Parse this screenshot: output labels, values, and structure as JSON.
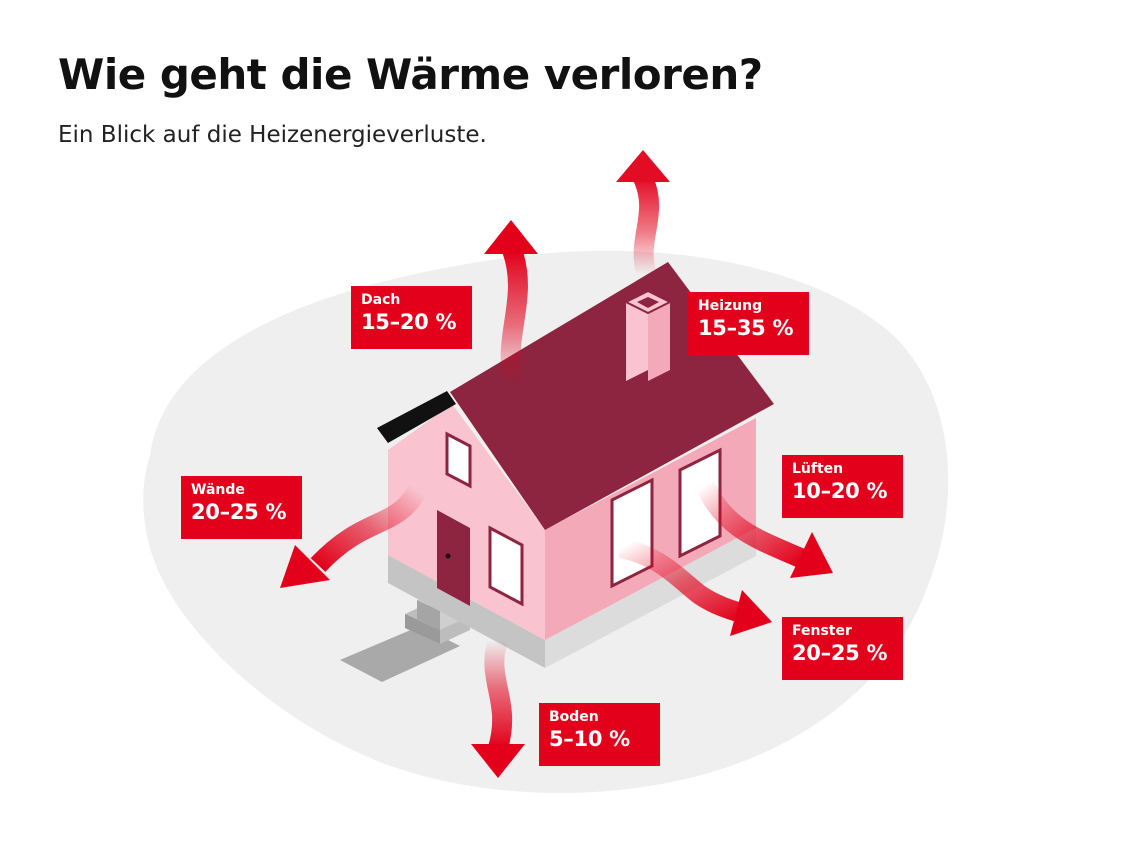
{
  "header": {
    "title": "Wie geht die Wärme verloren?",
    "subtitle": "Ein Blick auf die Heizenergieverluste."
  },
  "colors": {
    "accent_red": "#e2001a",
    "roof": "#8d2440",
    "wall_light": "#f9c4cf",
    "wall_dark": "#f3a9b8",
    "background_blob": "#efefef"
  },
  "losses": [
    {
      "id": "dach",
      "label": "Dach",
      "value": "15–20 %"
    },
    {
      "id": "heizung",
      "label": "Heizung",
      "value": "15–35 %"
    },
    {
      "id": "waende",
      "label": "Wände",
      "value": "20–25 %"
    },
    {
      "id": "lueften",
      "label": "Lüften",
      "value": "10–20 %"
    },
    {
      "id": "fenster",
      "label": "Fenster",
      "value": "20–25 %"
    },
    {
      "id": "boden",
      "label": "Boden",
      "value": "5–10 %"
    }
  ]
}
